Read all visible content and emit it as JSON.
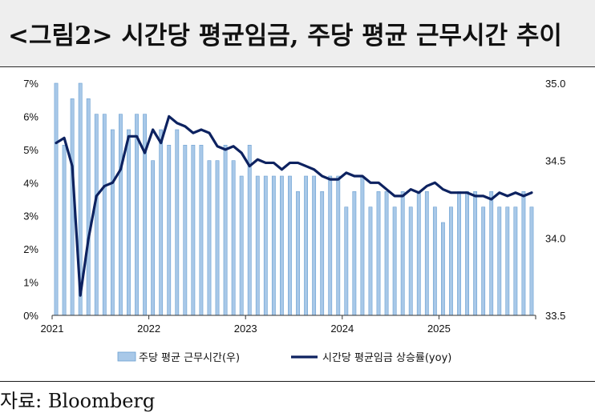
{
  "header": {
    "title": "<그림2> 시간당 평균임금, 주당 평균 근무시간 추이"
  },
  "footer": {
    "source": "자료: Bloomberg"
  },
  "chart_data": {
    "type": "bar",
    "title": "",
    "x_ticks": [
      "2021",
      "2022",
      "2023",
      "2024",
      "2025"
    ],
    "left_axis": {
      "ticks": [
        "0%",
        "1%",
        "2%",
        "3%",
        "4%",
        "5%",
        "6%",
        "7%"
      ],
      "ylim": [
        0,
        7
      ]
    },
    "right_axis": {
      "ticks": [
        "33.5",
        "34.0",
        "34.5",
        "35.0"
      ],
      "ylim": [
        33.5,
        35.0
      ]
    },
    "legend_position": "bottom",
    "series": [
      {
        "name": "주당 평균 근무시간(우)",
        "kind": "bar",
        "axis": "right",
        "color": "#a8c8e8",
        "values": [
          35.0,
          34.6,
          34.9,
          35.0,
          34.9,
          34.8,
          34.8,
          34.7,
          34.8,
          34.7,
          34.8,
          34.8,
          34.5,
          34.7,
          34.6,
          34.7,
          34.6,
          34.6,
          34.6,
          34.5,
          34.5,
          34.6,
          34.5,
          34.4,
          34.6,
          34.4,
          34.4,
          34.4,
          34.4,
          34.4,
          34.3,
          34.4,
          34.4,
          34.3,
          34.4,
          34.4,
          34.2,
          34.3,
          34.4,
          34.2,
          34.3,
          34.3,
          34.2,
          34.3,
          34.2,
          34.3,
          34.3,
          34.2,
          34.1,
          34.2,
          34.3,
          34.3,
          34.3,
          34.2,
          34.3,
          34.2,
          34.2,
          34.2,
          34.3,
          34.2
        ]
      },
      {
        "name": "시간당 평균임금 상승률(yoy)",
        "kind": "line",
        "axis": "left",
        "color": "#0d2260",
        "values": [
          5.2,
          5.35,
          4.5,
          0.6,
          2.3,
          3.6,
          3.9,
          4.0,
          4.4,
          5.4,
          5.4,
          4.9,
          5.6,
          5.2,
          6.0,
          5.8,
          5.7,
          5.5,
          5.6,
          5.5,
          5.1,
          5.0,
          5.1,
          4.9,
          4.5,
          4.7,
          4.6,
          4.6,
          4.4,
          4.6,
          4.6,
          4.5,
          4.4,
          4.2,
          4.1,
          4.1,
          4.3,
          4.2,
          4.2,
          4.0,
          4.0,
          3.8,
          3.6,
          3.6,
          3.8,
          3.7,
          3.9,
          4.0,
          3.8,
          3.7,
          3.7,
          3.7,
          3.6,
          3.6,
          3.5,
          3.7,
          3.6,
          3.7,
          3.6,
          3.7
        ]
      }
    ]
  }
}
